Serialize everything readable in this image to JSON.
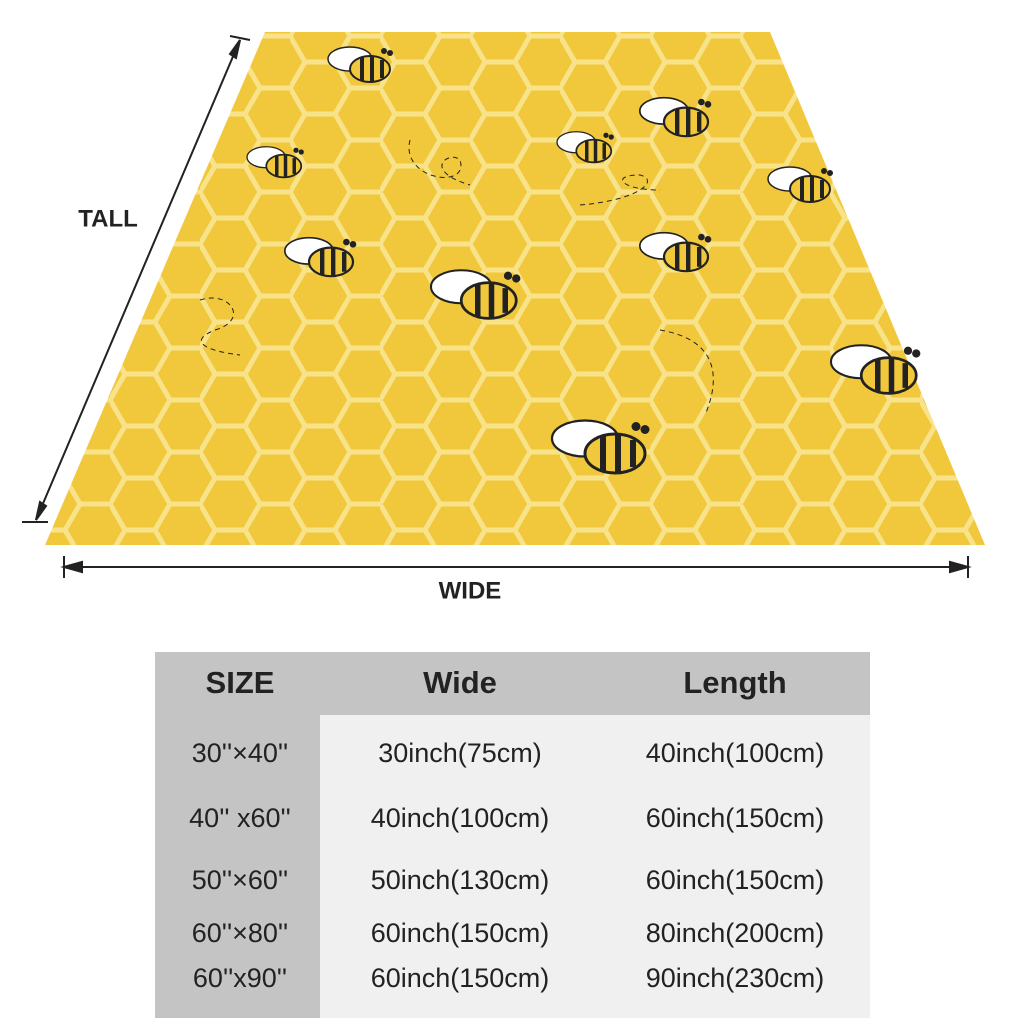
{
  "labels": {
    "tall": "TALL",
    "wide": "WIDE"
  },
  "table": {
    "header": [
      "SIZE",
      "Wide",
      "Length"
    ],
    "rows": [
      [
        "30''×40''",
        "30inch(75cm)",
        "40inch(100cm)"
      ],
      [
        "40'' x60''",
        "40inch(100cm)",
        "60inch(150cm)"
      ],
      [
        "50''×60''",
        "50inch(130cm)",
        "60inch(150cm)"
      ],
      [
        "60''×80''",
        "60inch(150cm)",
        "80inch(200cm)"
      ],
      [
        "60''x90''",
        "60inch(150cm)",
        "90inch(230cm)"
      ]
    ]
  }
}
